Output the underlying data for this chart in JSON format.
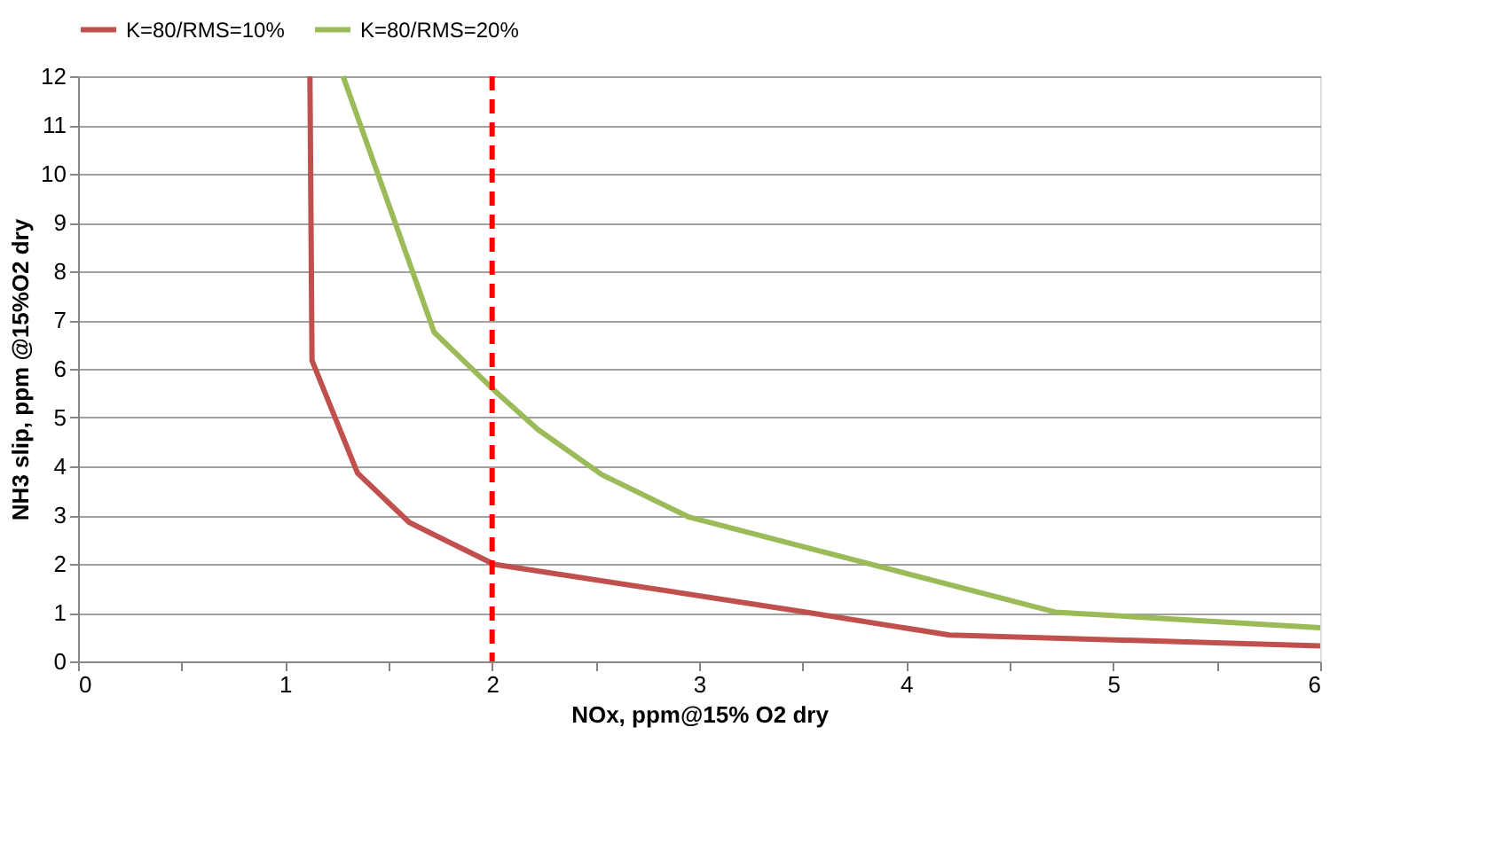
{
  "chart_data": {
    "type": "line",
    "xlabel": "NOx, ppm@15% O2 dry",
    "ylabel": "NH3 slip, ppm @15%O2 dry",
    "xlim": [
      0,
      6
    ],
    "ylim": [
      0,
      12
    ],
    "xticks": [
      0,
      {
        "value": 0.5,
        "label": null
      },
      1,
      {
        "value": 1.5,
        "label": null
      },
      2,
      {
        "value": 2.5,
        "label": null
      },
      3,
      {
        "value": 3.5,
        "label": null
      },
      4,
      {
        "value": 4.5,
        "label": null
      },
      5,
      {
        "value": 5.5,
        "label": null
      },
      6
    ],
    "yticks": [
      0,
      1,
      2,
      3,
      4,
      5,
      6,
      7,
      8,
      9,
      10,
      11,
      12
    ],
    "grid": "y",
    "legend": "top",
    "line_style": "solid",
    "marker": "none",
    "series": [
      {
        "name": "K=80/RMS=10%",
        "color": "#c0504d",
        "x": [
          1.12,
          1.13,
          1.35,
          1.6,
          2.01,
          3.53,
          4.21,
          6
        ],
        "values": [
          12,
          6.17,
          3.86,
          2.85,
          1.99,
          1.0,
          0.54,
          0.32
        ]
      },
      {
        "name": "K=80/RMS=20%",
        "color": "#9bbb59",
        "x": [
          1.28,
          1.72,
          2.01,
          2.22,
          2.53,
          2.95,
          4.72,
          6
        ],
        "values": [
          12,
          6.75,
          5.56,
          4.76,
          3.83,
          2.96,
          1.01,
          0.69
        ]
      }
    ],
    "ref_lines": [
      {
        "axis": "x",
        "value": 2,
        "label": null,
        "color": "#ff0000",
        "line_style": "dashed"
      }
    ]
  }
}
